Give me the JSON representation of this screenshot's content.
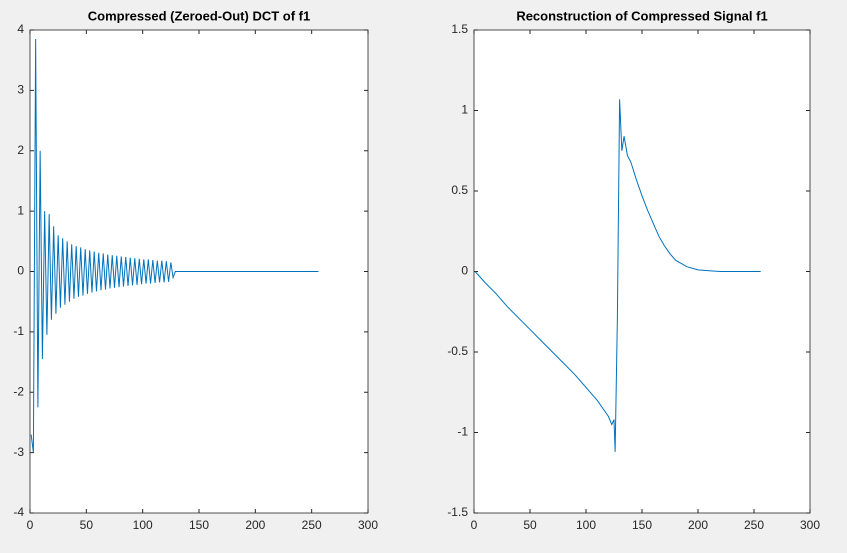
{
  "chart_data": [
    {
      "type": "line",
      "title": "Compressed (Zeroed-Out) DCT of f1",
      "color": "#0072bd",
      "x": [
        1,
        3,
        5,
        7,
        9,
        11,
        13,
        15,
        17,
        19,
        21,
        23,
        25,
        27,
        29,
        31,
        33,
        35,
        37,
        39,
        41,
        43,
        45,
        47,
        49,
        51,
        53,
        55,
        57,
        59,
        61,
        63,
        65,
        67,
        69,
        71,
        73,
        75,
        77,
        79,
        81,
        83,
        85,
        87,
        89,
        91,
        93,
        95,
        97,
        99,
        101,
        103,
        105,
        107,
        109,
        111,
        113,
        115,
        117,
        119,
        121,
        123,
        125,
        127,
        129,
        256
      ],
      "values": [
        -2.7,
        -3.0,
        3.85,
        -2.25,
        2.0,
        -1.45,
        1.0,
        -1.05,
        0.95,
        -0.8,
        0.75,
        -0.7,
        0.6,
        -0.6,
        0.55,
        -0.55,
        0.5,
        -0.5,
        0.45,
        -0.45,
        0.42,
        -0.42,
        0.4,
        -0.4,
        0.37,
        -0.37,
        0.35,
        -0.35,
        0.33,
        -0.33,
        0.31,
        -0.31,
        0.3,
        -0.3,
        0.28,
        -0.28,
        0.27,
        -0.27,
        0.26,
        -0.26,
        0.25,
        -0.25,
        0.24,
        -0.24,
        0.23,
        -0.23,
        0.22,
        -0.22,
        0.21,
        -0.21,
        0.2,
        -0.2,
        0.2,
        -0.2,
        0.19,
        -0.19,
        0.18,
        -0.18,
        0.18,
        -0.18,
        0.17,
        -0.17,
        0.15,
        -0.1,
        0,
        0
      ],
      "xlim": [
        0,
        300
      ],
      "xticks": [
        0,
        50,
        100,
        150,
        200,
        250,
        300
      ],
      "ylim": [
        -4,
        4
      ],
      "yticks": [
        -4,
        -3,
        -2,
        -1,
        0,
        1,
        2,
        3,
        4
      ]
    },
    {
      "type": "line",
      "title": "Reconstruction of Compressed Signal f1",
      "color": "#0072bd",
      "x": [
        1,
        10,
        20,
        30,
        40,
        50,
        60,
        70,
        80,
        90,
        100,
        110,
        115,
        120,
        123,
        125,
        126,
        128,
        130,
        132,
        134,
        137,
        140,
        145,
        150,
        155,
        160,
        165,
        170,
        175,
        180,
        185,
        190,
        200,
        210,
        220,
        230,
        240,
        250,
        256
      ],
      "values": [
        0,
        -0.07,
        -0.14,
        -0.22,
        -0.29,
        -0.36,
        -0.43,
        -0.5,
        -0.57,
        -0.64,
        -0.72,
        -0.8,
        -0.85,
        -0.9,
        -0.95,
        -0.92,
        -1.12,
        -0.3,
        1.07,
        0.75,
        0.84,
        0.72,
        0.68,
        0.57,
        0.47,
        0.38,
        0.3,
        0.22,
        0.16,
        0.11,
        0.07,
        0.05,
        0.03,
        0.01,
        0.005,
        0,
        0,
        0,
        0,
        0
      ],
      "xlim": [
        0,
        300
      ],
      "xticks": [
        0,
        50,
        100,
        150,
        200,
        250,
        300
      ],
      "ylim": [
        -1.5,
        1.5
      ],
      "yticks": [
        -1.5,
        -1,
        -0.5,
        0,
        0.5,
        1,
        1.5
      ]
    }
  ]
}
